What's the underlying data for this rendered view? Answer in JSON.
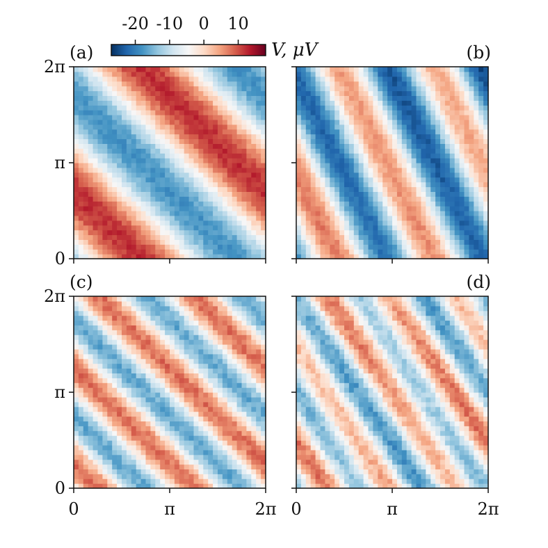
{
  "colorbar": {
    "label": "V, μV",
    "ticks": [
      {
        "value": -20,
        "label": "-20"
      },
      {
        "value": -10,
        "label": "-10"
      },
      {
        "value": 0,
        "label": "0"
      },
      {
        "value": 10,
        "label": "10"
      }
    ],
    "range": [
      -27,
      18
    ],
    "colormap": "RdBu_r",
    "colors": [
      "#053061",
      "#2166ac",
      "#4393c3",
      "#92c5de",
      "#d1e5f0",
      "#f7f7f7",
      "#fddbc7",
      "#f4a582",
      "#d6604d",
      "#b2182b",
      "#67001f"
    ]
  },
  "axes": {
    "x_tick_labels": [
      "0",
      "π",
      "2π"
    ],
    "y_tick_labels": [
      "0",
      "π",
      "2π"
    ]
  },
  "chart_data": [
    {
      "type": "heatmap",
      "panel_label": "(a)",
      "x_range": [
        0,
        6.2832
      ],
      "y_range": [
        0,
        6.2832
      ],
      "grid_size": 40,
      "field": {
        "terms": [
          {
            "a": 15,
            "p": 1,
            "q": 1,
            "phi": -2.2
          }
        ],
        "offset": -3,
        "noise": 1.5
      }
    },
    {
      "type": "heatmap",
      "panel_label": "(b)",
      "x_range": [
        0,
        6.2832
      ],
      "y_range": [
        0,
        6.2832
      ],
      "grid_size": 40,
      "field": {
        "terms": [
          {
            "a": 14,
            "p": 2,
            "q": 1,
            "phi": -2.8
          }
        ],
        "offset": -6,
        "noise": 1.5,
        "ramp": -0.8
      }
    },
    {
      "type": "heatmap",
      "panel_label": "(c)",
      "x_range": [
        0,
        6.2832
      ],
      "y_range": [
        0,
        6.2832
      ],
      "grid_size": 40,
      "field": {
        "terms": [
          {
            "a": 12,
            "p": 2,
            "q": 2,
            "phi": -1.6
          }
        ],
        "offset": -4,
        "noise": 2
      }
    },
    {
      "type": "heatmap",
      "panel_label": "(d)",
      "x_range": [
        0,
        6.2832
      ],
      "y_range": [
        0,
        6.2832
      ],
      "grid_size": 40,
      "field": {
        "terms": [
          {
            "a": 10,
            "p": 3,
            "q": 2,
            "phi": -3.0
          },
          {
            "a": 3,
            "p": 1,
            "q": 1,
            "phi": -1.4
          }
        ],
        "offset": -5,
        "noise": 2.2
      }
    }
  ]
}
